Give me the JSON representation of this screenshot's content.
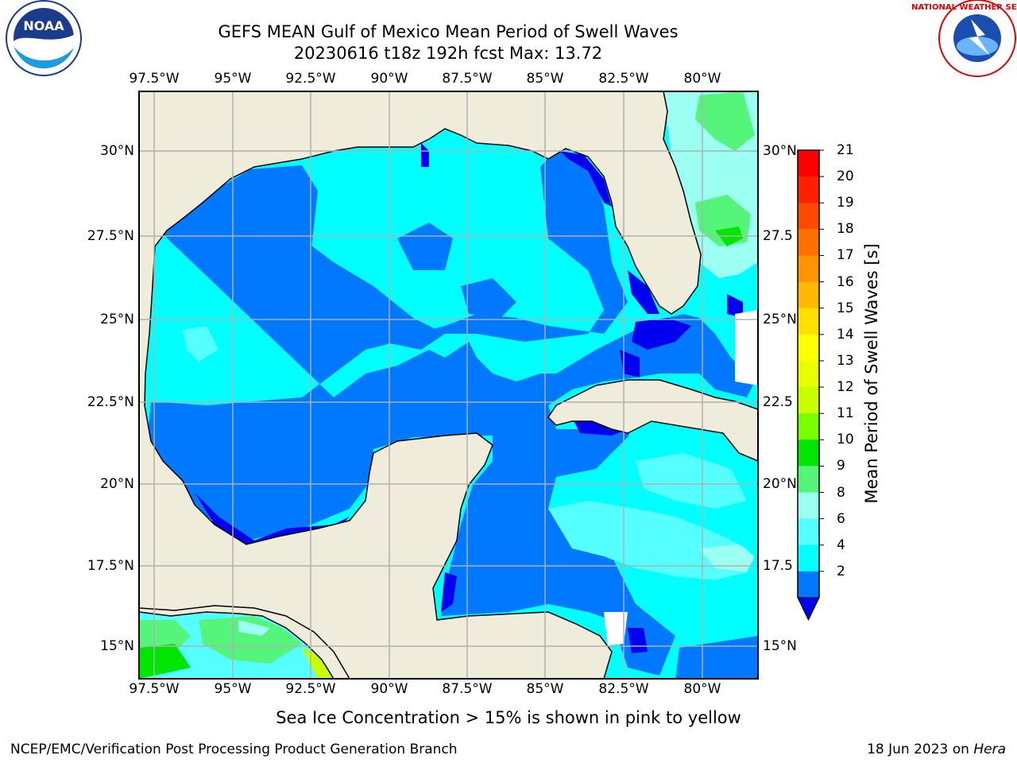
{
  "titles": {
    "line1": "GEFS MEAN Gulf of Mexico Mean Period of Swell Waves",
    "line2": "20230616 t18z 192h fcst   Max: 13.72"
  },
  "axes": {
    "lon_labels": [
      "97.5°W",
      "95°W",
      "92.5°W",
      "90°W",
      "87.5°W",
      "85°W",
      "82.5°W",
      "80°W"
    ],
    "lat_labels": [
      "30°N",
      "27.5°N",
      "25°N",
      "22.5°N",
      "20°N",
      "17.5°N",
      "15°N"
    ],
    "lat_labels_right": [
      "30°N",
      "27.5",
      "25°N",
      "22.5",
      "20°N",
      "17.5",
      "15°N"
    ]
  },
  "colorbar": {
    "label": "Mean Period of Swell Waves [s]",
    "ticks": [
      "21",
      "20",
      "19",
      "18",
      "17",
      "16",
      "15",
      "14",
      "13",
      "12",
      "11",
      "10",
      "9",
      "8",
      "6",
      "4",
      "2"
    ],
    "colors": [
      "#ff0000",
      "#ff2000",
      "#ff4800",
      "#ff7000",
      "#ff9400",
      "#ffb800",
      "#ffe000",
      "#ffff00",
      "#e8ff00",
      "#c8ff00",
      "#78ff00",
      "#00e600",
      "#55f57c",
      "#9bfff2",
      "#55ffff",
      "#00ffff",
      "#0078ff"
    ],
    "extend_color": "#0000ee"
  },
  "colors": {
    "land": "#efecdc",
    "deep": "#0000ee",
    "blue": "#0078ff",
    "cyan": "#00ffff",
    "light_cyan": "#55ffff",
    "pale": "#9bfff2",
    "green": "#55f57c",
    "bright_green": "#00e600"
  },
  "note": "Sea Ice Concentration > 15% is shown in pink to yellow",
  "footer": {
    "left": "NCEP/EMC/Verification Post Processing Product Generation Branch",
    "right_prefix": "18 Jun 2023 on ",
    "right_host": "Hera"
  },
  "logos": {
    "noaa_text": "NOAA",
    "nws_text": "NATIONAL WEATHER SERVICE"
  }
}
